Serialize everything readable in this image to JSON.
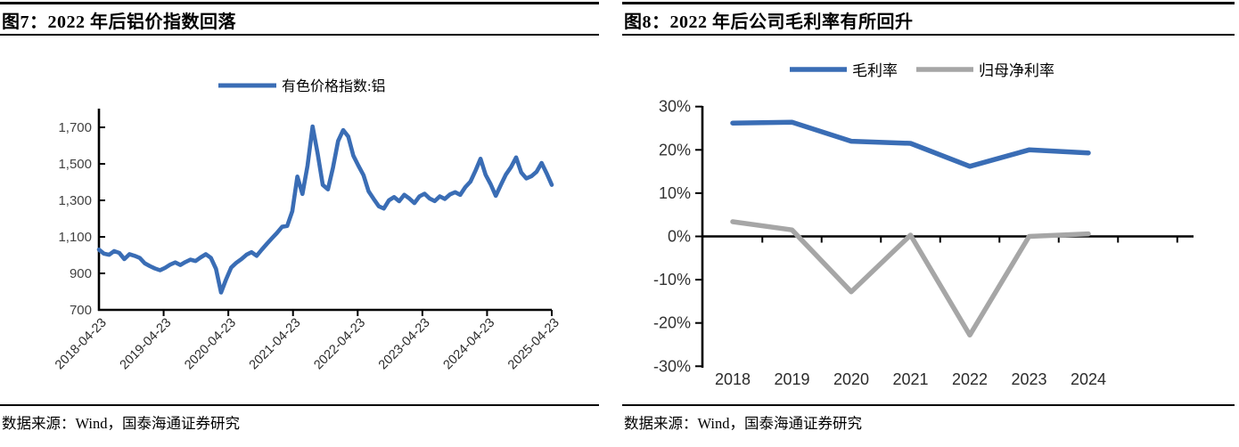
{
  "figure7": {
    "title": "图7：2022 年后铝价指数回落",
    "source": "数据来源：Wind，国泰海通证券研究"
  },
  "figure8": {
    "title": "图8：2022 年后公司毛利率有所回升",
    "source": "数据来源：Wind，国泰海通证券研究"
  },
  "colors": {
    "blue": "#3a6db5",
    "gray": "#a6a6a6",
    "axis": "#000000",
    "tick_text": "#414141"
  },
  "chart_data": [
    {
      "type": "line",
      "name": "aluminum-price-index-chart",
      "title": "图7：2022 年后铝价指数回落",
      "legend": [
        {
          "label": "有色价格指数:铝",
          "color": "#3a6db5"
        }
      ],
      "xlabel": "",
      "ylabel": "",
      "ylim": [
        700,
        1700
      ],
      "grid": false,
      "yticks": [
        {
          "label": "1,700",
          "value": 1700
        },
        {
          "label": "1,500",
          "value": 1500
        },
        {
          "label": "1,300",
          "value": 1300
        },
        {
          "label": "1,100",
          "value": 1100
        },
        {
          "label": "900",
          "value": 900
        },
        {
          "label": "700",
          "value": 700
        }
      ],
      "x_tick_labels": [
        "2018-04-23",
        "2019-04-23",
        "2020-04-23",
        "2021-04-23",
        "2022-04-23",
        "2023-04-23",
        "2024-04-23",
        "2025-04-23"
      ],
      "series": [
        {
          "name": "有色价格指数:铝",
          "color": "#3a6db5",
          "values": [
            1030,
            1008,
            1002,
            1022,
            1012,
            978,
            1005,
            996,
            985,
            955,
            940,
            927,
            917,
            930,
            948,
            960,
            946,
            962,
            975,
            968,
            988,
            1005,
            985,
            925,
            795,
            868,
            932,
            958,
            978,
            1002,
            1016,
            996,
            1030,
            1062,
            1092,
            1122,
            1155,
            1160,
            1240,
            1430,
            1335,
            1490,
            1705,
            1555,
            1385,
            1360,
            1480,
            1625,
            1685,
            1650,
            1545,
            1490,
            1438,
            1350,
            1308,
            1268,
            1255,
            1300,
            1318,
            1295,
            1330,
            1310,
            1285,
            1322,
            1336,
            1310,
            1296,
            1322,
            1308,
            1332,
            1345,
            1330,
            1372,
            1402,
            1462,
            1528,
            1440,
            1388,
            1325,
            1385,
            1442,
            1482,
            1535,
            1452,
            1420,
            1432,
            1456,
            1505,
            1448,
            1385
          ]
        }
      ]
    },
    {
      "type": "line",
      "name": "margin-trend-chart",
      "title": "图8：2022 年后公司毛利率有所回升",
      "categories": [
        "2018",
        "2019",
        "2020",
        "2021",
        "2022",
        "2023",
        "2024"
      ],
      "ylim": [
        -30,
        30
      ],
      "grid": false,
      "legend_position": "top",
      "yticks": [
        {
          "label": "30%",
          "value": 30
        },
        {
          "label": "20%",
          "value": 20
        },
        {
          "label": "10%",
          "value": 10
        },
        {
          "label": "0%",
          "value": 0
        },
        {
          "label": "-10%",
          "value": -10
        },
        {
          "label": "-20%",
          "value": -20
        },
        {
          "label": "-30%",
          "value": -30
        }
      ],
      "series": [
        {
          "name": "毛利率",
          "color": "#3a6db5",
          "values": [
            26.2,
            26.4,
            22.0,
            21.5,
            16.2,
            20.0,
            19.3
          ]
        },
        {
          "name": "归母净利率",
          "color": "#a6a6a6",
          "values": [
            3.4,
            1.5,
            -12.8,
            0.3,
            -22.8,
            0.0,
            0.6
          ]
        }
      ]
    }
  ]
}
